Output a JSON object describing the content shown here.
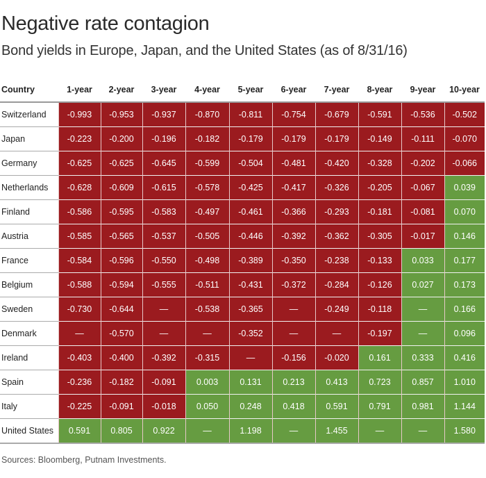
{
  "header": {
    "title": "Negative rate contagion",
    "subtitle": "Bond yields in Europe, Japan, and the United States (as of 8/31/16)"
  },
  "footer": {
    "source": "Sources: Bloomberg, Putnam Investments."
  },
  "colors": {
    "negative": "#9b1b1f",
    "positive": "#669c41"
  },
  "chart_data": {
    "type": "table",
    "title": "Negative rate contagion",
    "subtitle": "Bond yields in Europe, Japan, and the United States (as of 8/31/16)",
    "columns": [
      "Country",
      "1-year",
      "2-year",
      "3-year",
      "4-year",
      "5-year",
      "6-year",
      "7-year",
      "8-year",
      "9-year",
      "10-year"
    ],
    "missing_symbol": "—",
    "rows": [
      {
        "country": "Switzerland",
        "values": [
          -0.993,
          -0.953,
          -0.937,
          -0.87,
          -0.811,
          -0.754,
          -0.679,
          -0.591,
          -0.536,
          -0.502
        ]
      },
      {
        "country": "Japan",
        "values": [
          -0.223,
          -0.2,
          -0.196,
          -0.182,
          -0.179,
          -0.179,
          -0.179,
          -0.149,
          -0.111,
          -0.07
        ]
      },
      {
        "country": "Germany",
        "values": [
          -0.625,
          -0.625,
          -0.645,
          -0.599,
          -0.504,
          -0.481,
          -0.42,
          -0.328,
          -0.202,
          -0.066
        ]
      },
      {
        "country": "Netherlands",
        "values": [
          -0.628,
          -0.609,
          -0.615,
          -0.578,
          -0.425,
          -0.417,
          -0.326,
          -0.205,
          -0.067,
          0.039
        ]
      },
      {
        "country": "Finland",
        "values": [
          -0.586,
          -0.595,
          -0.583,
          -0.497,
          -0.461,
          -0.366,
          -0.293,
          -0.181,
          -0.081,
          0.07
        ]
      },
      {
        "country": "Austria",
        "values": [
          -0.585,
          -0.565,
          -0.537,
          -0.505,
          -0.446,
          -0.392,
          -0.362,
          -0.305,
          -0.017,
          0.146
        ]
      },
      {
        "country": "France",
        "values": [
          -0.584,
          -0.596,
          -0.55,
          -0.498,
          -0.389,
          -0.35,
          -0.238,
          -0.133,
          0.033,
          0.177
        ]
      },
      {
        "country": "Belgium",
        "values": [
          -0.588,
          -0.594,
          -0.555,
          -0.511,
          -0.431,
          -0.372,
          -0.284,
          -0.126,
          0.027,
          0.173
        ]
      },
      {
        "country": "Sweden",
        "values": [
          -0.73,
          -0.644,
          null,
          -0.538,
          -0.365,
          null,
          -0.249,
          -0.118,
          null,
          0.166
        ]
      },
      {
        "country": "Denmark",
        "values": [
          null,
          -0.57,
          null,
          null,
          -0.352,
          null,
          null,
          -0.197,
          null,
          0.096
        ]
      },
      {
        "country": "Ireland",
        "values": [
          -0.403,
          -0.4,
          -0.392,
          -0.315,
          null,
          -0.156,
          -0.02,
          0.161,
          0.333,
          0.416
        ]
      },
      {
        "country": "Spain",
        "values": [
          -0.236,
          -0.182,
          -0.091,
          0.003,
          0.131,
          0.213,
          0.413,
          0.723,
          0.857,
          1.01
        ]
      },
      {
        "country": "Italy",
        "values": [
          -0.225,
          -0.091,
          -0.018,
          0.05,
          0.248,
          0.418,
          0.591,
          0.791,
          0.981,
          1.144
        ]
      },
      {
        "country": "United States",
        "values": [
          0.591,
          0.805,
          0.922,
          null,
          1.198,
          null,
          1.455,
          null,
          null,
          1.58
        ]
      }
    ],
    "cell_region": [
      [
        "neg",
        "neg",
        "neg",
        "neg",
        "neg",
        "neg",
        "neg",
        "neg",
        "neg",
        "neg"
      ],
      [
        "neg",
        "neg",
        "neg",
        "neg",
        "neg",
        "neg",
        "neg",
        "neg",
        "neg",
        "neg"
      ],
      [
        "neg",
        "neg",
        "neg",
        "neg",
        "neg",
        "neg",
        "neg",
        "neg",
        "neg",
        "neg"
      ],
      [
        "neg",
        "neg",
        "neg",
        "neg",
        "neg",
        "neg",
        "neg",
        "neg",
        "neg",
        "pos"
      ],
      [
        "neg",
        "neg",
        "neg",
        "neg",
        "neg",
        "neg",
        "neg",
        "neg",
        "neg",
        "pos"
      ],
      [
        "neg",
        "neg",
        "neg",
        "neg",
        "neg",
        "neg",
        "neg",
        "neg",
        "neg",
        "pos"
      ],
      [
        "neg",
        "neg",
        "neg",
        "neg",
        "neg",
        "neg",
        "neg",
        "neg",
        "pos",
        "pos"
      ],
      [
        "neg",
        "neg",
        "neg",
        "neg",
        "neg",
        "neg",
        "neg",
        "neg",
        "pos",
        "pos"
      ],
      [
        "neg",
        "neg",
        "neg",
        "neg",
        "neg",
        "neg",
        "neg",
        "neg",
        "pos",
        "pos"
      ],
      [
        "neg",
        "neg",
        "neg",
        "neg",
        "neg",
        "neg",
        "neg",
        "neg",
        "pos",
        "pos"
      ],
      [
        "neg",
        "neg",
        "neg",
        "neg",
        "neg",
        "neg",
        "neg",
        "pos",
        "pos",
        "pos"
      ],
      [
        "neg",
        "neg",
        "neg",
        "pos",
        "pos",
        "pos",
        "pos",
        "pos",
        "pos",
        "pos"
      ],
      [
        "neg",
        "neg",
        "neg",
        "pos",
        "pos",
        "pos",
        "pos",
        "pos",
        "pos",
        "pos"
      ],
      [
        "pos",
        "pos",
        "pos",
        "pos",
        "pos",
        "pos",
        "pos",
        "pos",
        "pos",
        "pos"
      ]
    ]
  }
}
